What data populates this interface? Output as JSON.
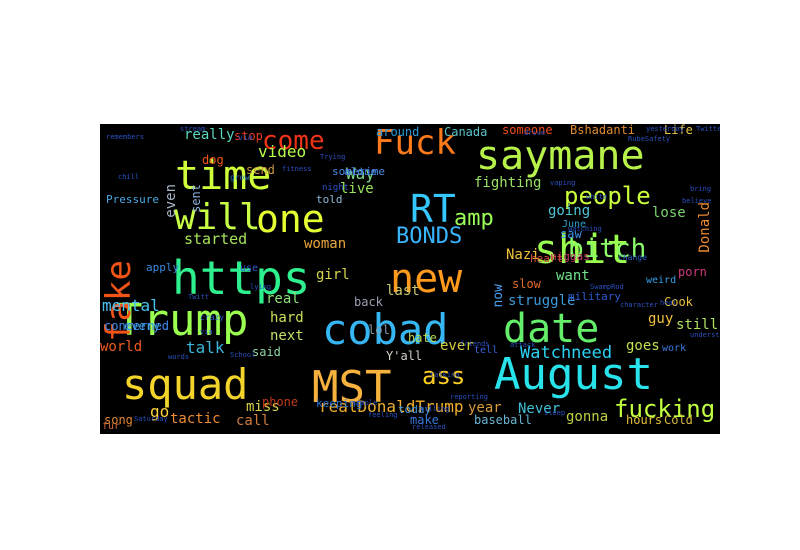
{
  "words": [
    {
      "text": "https",
      "color": "#2ff08e",
      "rot": 0
    },
    {
      "text": "Trump",
      "color": "#9bff50",
      "rot": 0
    },
    {
      "text": "squad",
      "color": "#f2d42a",
      "rot": 0
    },
    {
      "text": "MST",
      "color": "#f6b23c",
      "rot": 0
    },
    {
      "text": "August",
      "color": "#29e3ec",
      "rot": 0
    },
    {
      "text": "cobad",
      "color": "#36b6f2",
      "rot": 0
    },
    {
      "text": "date",
      "color": "#64ee6a",
      "rot": 0
    },
    {
      "text": "new",
      "color": "#ff9a1c",
      "rot": 0
    },
    {
      "text": "shit",
      "color": "#9bff4f",
      "rot": 0
    },
    {
      "text": "saymane",
      "color": "#b7f24a",
      "rot": 0
    },
    {
      "text": "time",
      "color": "#d0ff3c",
      "rot": 0
    },
    {
      "text": "Fuck",
      "color": "#ff7a1a",
      "rot": 0
    },
    {
      "text": "will",
      "color": "#c9ff44",
      "rot": 0
    },
    {
      "text": "one",
      "color": "#e5ff33",
      "rot": 0
    },
    {
      "text": "RT",
      "color": "#36c7ff",
      "rot": 0
    },
    {
      "text": "fake",
      "color": "#f25418",
      "rot": 270
    },
    {
      "text": "come",
      "color": "#ee3316",
      "rot": 0
    },
    {
      "text": "people",
      "color": "#ccff3b",
      "rot": 0
    },
    {
      "text": "bitch",
      "color": "#8bff6a",
      "rot": 0
    },
    {
      "text": "BONDS",
      "color": "#3ab6ff",
      "rot": 0
    },
    {
      "text": "amp",
      "color": "#9bff58",
      "rot": 0
    },
    {
      "text": "ass",
      "color": "#ffd021",
      "rot": 0
    },
    {
      "text": "fucking",
      "color": "#c2ff3e",
      "rot": 0
    },
    {
      "text": "Watchneed",
      "color": "#2cd3f3",
      "rot": 0
    },
    {
      "text": "realDonaldTrump",
      "color": "#f0b02d",
      "rot": 0
    },
    {
      "text": "video",
      "color": "#b7ff4c",
      "rot": 0
    },
    {
      "text": "started",
      "color": "#a6e35c",
      "rot": 0
    },
    {
      "text": "woman",
      "color": "#e8a63c",
      "rot": 0
    },
    {
      "text": "mental",
      "color": "#4ac2f0",
      "rot": 0
    },
    {
      "text": "really",
      "color": "#5bd9c0",
      "rot": 0
    },
    {
      "text": "stop",
      "color": "#e63d1c",
      "rot": 0
    },
    {
      "text": "Way",
      "color": "#7ddc8a",
      "rot": 0
    },
    {
      "text": "live",
      "color": "#99e35c",
      "rot": 0
    },
    {
      "text": "fighting",
      "color": "#9be067",
      "rot": 0
    },
    {
      "text": "going",
      "color": "#4fc7d6",
      "rot": 0
    },
    {
      "text": "lose",
      "color": "#7bd46d",
      "rot": 0
    },
    {
      "text": "want",
      "color": "#6fe08a",
      "rot": 0
    },
    {
      "text": "Nazi",
      "color": "#f0c33c",
      "rot": 0
    },
    {
      "text": "girl",
      "color": "#d8d84c",
      "rot": 0
    },
    {
      "text": "last",
      "color": "#c8c86a",
      "rot": 0
    },
    {
      "text": "hard",
      "color": "#c8e05a",
      "rot": 0
    },
    {
      "text": "next",
      "color": "#c1e06a",
      "rot": 0
    },
    {
      "text": "talk",
      "color": "#3bb7d8",
      "rot": 0
    },
    {
      "text": "world",
      "color": "#ef5a1f",
      "rot": 0
    },
    {
      "text": "said",
      "color": "#8fd3a0",
      "rot": 0
    },
    {
      "text": "miss",
      "color": "#d6d04a",
      "rot": 0
    },
    {
      "text": "song",
      "color": "#e08632",
      "rot": 0
    },
    {
      "text": "go",
      "color": "#ffd23a",
      "rot": 0
    },
    {
      "text": "tactic",
      "color": "#ef8c32",
      "rot": 0
    },
    {
      "text": "call",
      "color": "#d07a3a",
      "rot": 0
    },
    {
      "text": "year",
      "color": "#d89a3a",
      "rot": 0
    },
    {
      "text": "Never",
      "color": "#40c0d8",
      "rot": 0
    },
    {
      "text": "gonna",
      "color": "#c0d040",
      "rot": 0
    },
    {
      "text": "hours",
      "color": "#e6c03c",
      "rot": 0
    },
    {
      "text": "Cold",
      "color": "#d8b840",
      "rot": 0
    },
    {
      "text": "goes",
      "color": "#c0e050",
      "rot": 0
    },
    {
      "text": "guy",
      "color": "#f0c040",
      "rot": 0
    },
    {
      "text": "Cook",
      "color": "#e8c040",
      "rot": 0
    },
    {
      "text": "still",
      "color": "#b0e060",
      "rot": 0
    },
    {
      "text": "ever",
      "color": "#d8d040",
      "rot": 0
    },
    {
      "text": "hate",
      "color": "#b8d850",
      "rot": 0
    },
    {
      "text": "around",
      "color": "#2a9bd8",
      "rot": 0
    },
    {
      "text": "someone",
      "color": "#ef4c1c",
      "rot": 0
    },
    {
      "text": "Canada",
      "color": "#5ac3c8",
      "rot": 0
    },
    {
      "text": "Bshadanti",
      "color": "#e08a30",
      "rot": 0
    },
    {
      "text": "Life",
      "color": "#e6c848",
      "rot": 0
    },
    {
      "text": "send",
      "color": "#ca9840",
      "rot": 0
    },
    {
      "text": "dog",
      "color": "#ef5418",
      "rot": 0
    },
    {
      "text": "Donald",
      "color": "#e88a32",
      "rot": 270
    },
    {
      "text": "even",
      "color": "#a8b8c8",
      "rot": 270
    },
    {
      "text": "sent",
      "color": "#8ab0d8",
      "rot": 270
    },
    {
      "text": "now",
      "color": "#4aa0f0",
      "rot": 270
    },
    {
      "text": "concerned",
      "color": "#3b8cf0",
      "rot": 0
    },
    {
      "text": "real",
      "color": "#8ce07a",
      "rot": 0
    },
    {
      "text": "every",
      "color": "#3da0e0",
      "rot": 0
    },
    {
      "text": "struggle",
      "color": "#3c9bd8",
      "rot": 0
    },
    {
      "text": "slow",
      "color": "#e06a2a",
      "rot": 0
    },
    {
      "text": "Y'all",
      "color": "#d2d2c8",
      "rot": 0
    },
    {
      "text": "make",
      "color": "#3a78d8",
      "rot": 0
    },
    {
      "text": "baseball",
      "color": "#6ab4d0",
      "rot": 0
    },
    {
      "text": "phone",
      "color": "#c03a18",
      "rot": 0
    },
    {
      "text": "lol",
      "color": "#8c9aa8",
      "rot": 0
    },
    {
      "text": "back",
      "color": "#9aa0b0",
      "rot": 0
    },
    {
      "text": "saw",
      "color": "#3a90e8",
      "rot": 0
    },
    {
      "text": "porn",
      "color": "#d03a80",
      "rot": 0
    },
    {
      "text": "told",
      "color": "#8ab8d8",
      "rot": 0
    },
    {
      "text": "sometime",
      "color": "#4a8ae0",
      "rot": 0
    },
    {
      "text": "alone",
      "color": "#3a70e0",
      "rot": 0
    },
    {
      "text": "Pressure",
      "color": "#4aa8e0",
      "rot": 0
    },
    {
      "text": "keeping",
      "color": "#2a70d0",
      "rot": 0
    },
    {
      "text": "today",
      "color": "#4a9ae0",
      "rot": 0
    },
    {
      "text": "niggas",
      "color": "#c83a6a",
      "rot": 0
    },
    {
      "text": "military",
      "color": "#2a5ad0",
      "rot": 0
    },
    {
      "text": "heart",
      "color": "#d04a3a",
      "rot": 0
    },
    {
      "text": "apply",
      "color": "#3a8ae0",
      "rot": 0
    },
    {
      "text": "weird",
      "color": "#3aa0e8",
      "rot": 0
    },
    {
      "text": "June",
      "color": "#2aa0c8",
      "rot": 0
    },
    {
      "text": "fur",
      "color": "#d06a3a",
      "rot": 0
    },
    {
      "text": "work",
      "color": "#3a7ae0",
      "rot": 0
    },
    {
      "text": "use",
      "color": "#3a5ad0",
      "rot": 0
    },
    {
      "text": "tell",
      "color": "#3a60d8",
      "rot": 0
    },
    {
      "text": "night",
      "color": "#2a50c8",
      "rot": 0
    },
    {
      "text": "crazy",
      "color": "#2a60c8",
      "rot": 0
    },
    {
      "text": "grow",
      "color": "#2a80c8",
      "rot": 0
    },
    {
      "text": "change",
      "color": "#2a60c8",
      "rot": 0
    },
    {
      "text": "via",
      "color": "#2a50c0",
      "rot": 0
    },
    {
      "text": "via",
      "color": "#2a50c0",
      "rot": 0
    },
    {
      "text": "friends",
      "color": "#2a50c0",
      "rot": 0
    },
    {
      "text": "stream",
      "color": "#2a50c0",
      "rot": 0
    },
    {
      "text": "talking",
      "color": "#2a50c0",
      "rot": 0
    },
    {
      "text": "yesterday",
      "color": "#2a50c0",
      "rot": 0
    },
    {
      "text": "Saturday",
      "color": "#2a50c0",
      "rot": 0
    },
    {
      "text": "feeling",
      "color": "#2a50c0",
      "rot": 0
    },
    {
      "text": "killing",
      "color": "#2a50c0",
      "rot": 0
    },
    {
      "text": "released",
      "color": "#2a50c0",
      "rot": 0
    },
    {
      "text": "simple",
      "color": "#2a50c0",
      "rot": 0
    },
    {
      "text": "sleep",
      "color": "#2a50c0",
      "rot": 0
    },
    {
      "text": "drive",
      "color": "#2a50c0",
      "rot": 0
    },
    {
      "text": "watching",
      "color": "#2a50c0",
      "rot": 0
    },
    {
      "text": "SwampRod",
      "color": "#2a50c0",
      "rot": 0
    },
    {
      "text": "character",
      "color": "#2a50c0",
      "rot": 0
    },
    {
      "text": "believe",
      "color": "#2a50c0",
      "rot": 0
    },
    {
      "text": "Twitter",
      "color": "#2a50c0",
      "rot": 0
    },
    {
      "text": "bring",
      "color": "#2a50c0",
      "rot": 0
    },
    {
      "text": "white",
      "color": "#2a50c0",
      "rot": 0
    },
    {
      "text": "words",
      "color": "#2a50c0",
      "rot": 0
    },
    {
      "text": "Trying",
      "color": "#2a50c0",
      "rot": 0
    },
    {
      "text": "attack",
      "color": "#2a50c0",
      "rot": 0
    },
    {
      "text": "understand",
      "color": "#2a50c0",
      "rot": 0
    },
    {
      "text": "School",
      "color": "#2a50c0",
      "rot": 0
    },
    {
      "text": "lying",
      "color": "#2a50c0",
      "rot": 0
    },
    {
      "text": "vaping",
      "color": "#2a50c0",
      "rot": 0
    },
    {
      "text": "reporting",
      "color": "#2a50c0",
      "rot": 0
    },
    {
      "text": "RubeSafety",
      "color": "#2a50c0",
      "rot": 0
    },
    {
      "text": "Twitt",
      "color": "#2a50c0",
      "rot": 0
    },
    {
      "text": "chill",
      "color": "#2a50c0",
      "rot": 0
    },
    {
      "text": "heal",
      "color": "#2a50c0",
      "rot": 0
    },
    {
      "text": "remembers",
      "color": "#2a50c0",
      "rot": 0
    },
    {
      "text": "fitness",
      "color": "#2a50c0",
      "rot": 0
    }
  ]
}
